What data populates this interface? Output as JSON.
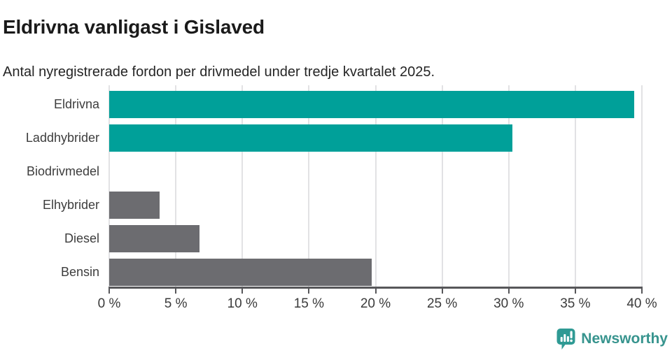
{
  "header": {
    "title": "Eldrivna vanligast i Gislaved",
    "subtitle": "Antal nyregistrerade fordon per drivmedel under tredje kvartalet 2025."
  },
  "chart_data": {
    "type": "bar",
    "orientation": "horizontal",
    "categories": [
      "Eldrivna",
      "Laddhybrider",
      "Biodrivmedel",
      "Elhybrider",
      "Diesel",
      "Bensin"
    ],
    "values": [
      39.4,
      30.3,
      0,
      3.8,
      6.8,
      19.7
    ],
    "unit": "%",
    "bar_colors": [
      "#00a099",
      "#00a099",
      "#6c6c70",
      "#6c6c70",
      "#6c6c70",
      "#6c6c70"
    ],
    "title": "Eldrivna vanligast i Gislaved",
    "xlabel": "",
    "ylabel": "",
    "xlim": [
      0,
      40
    ],
    "x_tick_step": 5,
    "x_tick_labels": [
      "0 %",
      "5 %",
      "10 %",
      "15 %",
      "20 %",
      "25 %",
      "30 %",
      "35 %",
      "40 %"
    ],
    "grid": "vertical-gridlines-on",
    "legend": "none"
  },
  "branding": {
    "logo_text": "Newsworthy",
    "logo_icon": "newsworthy-chart-speech-bubble-icon",
    "logo_color": "#37948e",
    "icon_color": "#2f9a94"
  },
  "colors": {
    "accent_teal": "#00a099",
    "neutral_gray": "#6c6c70",
    "gridline": "#e2e2e4",
    "axis_line": "#57575a",
    "title_text": "#1a1a1a",
    "label_text": "#3d3d3d"
  }
}
